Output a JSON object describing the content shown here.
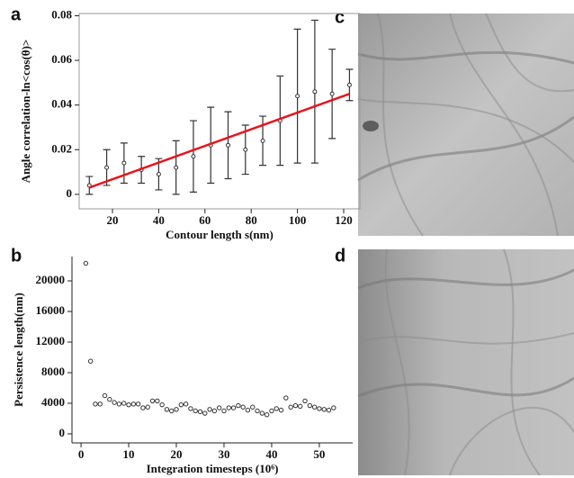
{
  "panel_labels": [
    "a",
    "b",
    "c",
    "d"
  ],
  "chart_data": [
    {
      "type": "errorbar",
      "frame": true,
      "xlabel": "Contour length s(nm)",
      "ylabel": "Angle correlation-ln<cos(θ)>",
      "x": [
        10,
        17.5,
        25,
        32.5,
        40,
        47.5,
        55,
        62.5,
        70,
        77.5,
        85,
        92.5,
        100,
        107.5,
        115,
        122.5
      ],
      "values": [
        0.004,
        0.012,
        0.014,
        0.011,
        0.009,
        0.012,
        0.017,
        0.022,
        0.022,
        0.02,
        0.024,
        0.033,
        0.044,
        0.046,
        0.045,
        0.049
      ],
      "errors": [
        0.004,
        0.008,
        0.009,
        0.006,
        0.007,
        0.012,
        0.016,
        0.017,
        0.015,
        0.011,
        0.011,
        0.02,
        0.03,
        0.032,
        0.02,
        0.007
      ],
      "color": "#333333",
      "fit": {
        "color": "#e8141c",
        "x": [
          10,
          122.5
        ],
        "values": [
          0.003,
          0.045
        ]
      },
      "xlim": [
        5.6,
        127
      ],
      "xticks": [
        20,
        40,
        60,
        80,
        100,
        120
      ],
      "ylim": [
        -0.0065,
        0.081
      ],
      "yticks": [
        0,
        0.02,
        0.04,
        0.06,
        0.08
      ]
    },
    {
      "type": "scatter",
      "frame": false,
      "xlabel": "Integration timesteps (10⁶)",
      "ylabel": "Persistence length(nm)",
      "x": [
        1,
        2,
        3,
        4,
        5,
        6,
        7,
        8,
        9,
        10,
        11,
        12,
        13,
        14,
        15,
        16,
        17,
        18,
        19,
        20,
        21,
        22,
        23,
        24,
        25,
        26,
        27,
        28,
        29,
        30,
        31,
        32,
        33,
        34,
        35,
        36,
        37,
        38,
        39,
        40,
        41,
        42,
        43,
        44,
        45,
        46,
        47,
        48,
        49,
        50,
        51,
        52,
        53
      ],
      "values": [
        22300,
        9500,
        3900,
        3900,
        5000,
        4500,
        4100,
        3900,
        4000,
        3800,
        3900,
        3900,
        3400,
        3500,
        4300,
        4300,
        3800,
        3200,
        3000,
        3200,
        3800,
        3900,
        3300,
        3000,
        2900,
        2700,
        3200,
        3000,
        3400,
        3000,
        3400,
        3400,
        3700,
        3500,
        3100,
        3500,
        3000,
        2700,
        2500,
        3000,
        3300,
        3100,
        4700,
        3500,
        3700,
        3600,
        4300,
        3700,
        3500,
        3300,
        3200,
        3100,
        3400
      ],
      "color": "#333333",
      "xlim": [
        -1.9,
        57
      ],
      "xticks": [
        0,
        10,
        20,
        30,
        40,
        50
      ],
      "ylim": [
        -1180,
        23180
      ],
      "yticks": [
        0,
        4000,
        8000,
        12000,
        16000,
        20000
      ]
    }
  ]
}
